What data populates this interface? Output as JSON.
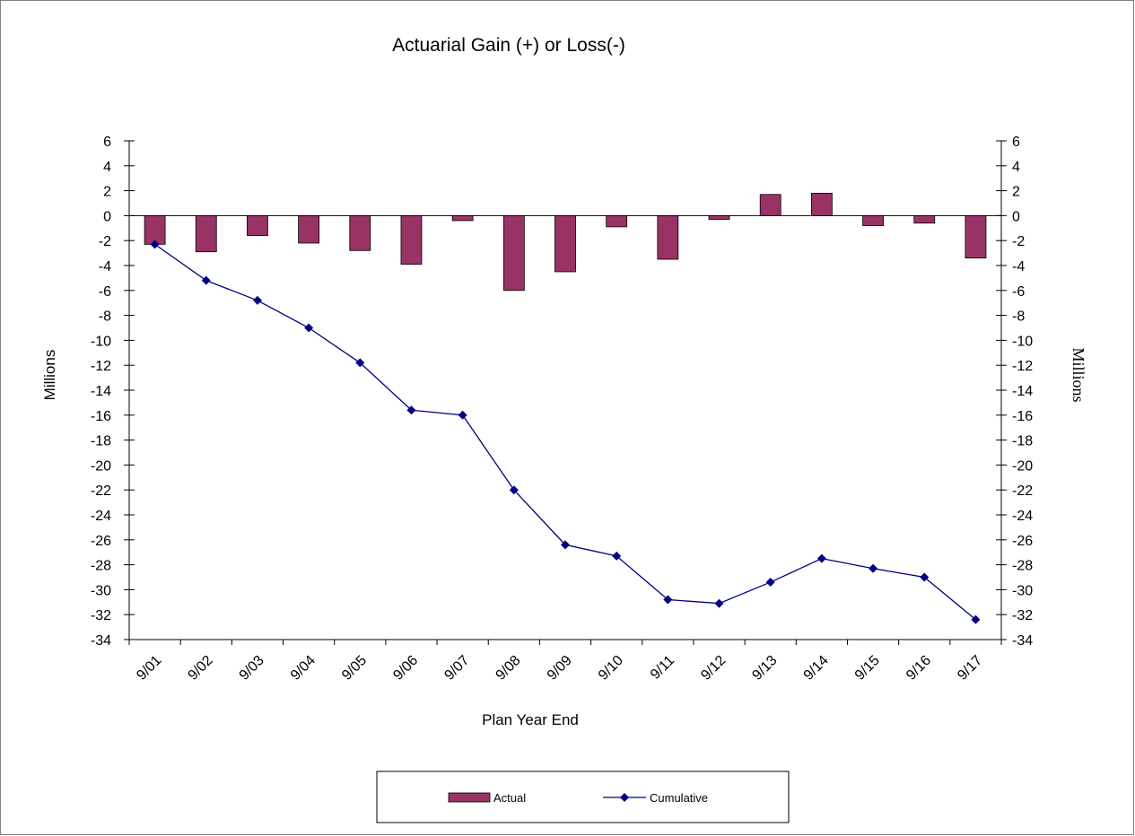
{
  "chart_data": {
    "type": "bar",
    "title": "Actuarial Gain (+) or Loss(-)",
    "xlabel": "Plan Year End",
    "ylabel": "Millions",
    "y2label": "Millions",
    "ylim": [
      -34,
      6
    ],
    "y2lim": [
      -34,
      6
    ],
    "yticks": [
      6,
      4,
      2,
      0,
      -2,
      -4,
      -6,
      -8,
      -10,
      -12,
      -14,
      -16,
      -18,
      -20,
      -22,
      -24,
      -26,
      -28,
      -30,
      -32,
      -34
    ],
    "categories": [
      "9/01",
      "9/02",
      "9/03",
      "9/04",
      "9/05",
      "9/06",
      "9/07",
      "9/08",
      "9/09",
      "9/10",
      "9/11",
      "9/12",
      "9/13",
      "9/14",
      "9/15",
      "9/16",
      "9/17"
    ],
    "series": [
      {
        "name": "Actual",
        "type": "bar",
        "color": "#993366",
        "values": [
          -2.3,
          -2.9,
          -1.6,
          -2.2,
          -2.8,
          -3.9,
          -0.4,
          -6.0,
          -4.5,
          -0.9,
          -3.5,
          -0.3,
          1.7,
          1.8,
          -0.8,
          -0.6,
          -3.4
        ]
      },
      {
        "name": "Cumulative",
        "type": "line",
        "color": "#000080",
        "values": [
          -2.3,
          -5.2,
          -6.8,
          -9.0,
          -11.8,
          -15.6,
          -16.0,
          -22.0,
          -26.4,
          -27.3,
          -30.8,
          -31.1,
          -29.4,
          -27.5,
          -28.3,
          -29.0,
          -32.4
        ]
      }
    ],
    "legend": "bottom-center"
  }
}
